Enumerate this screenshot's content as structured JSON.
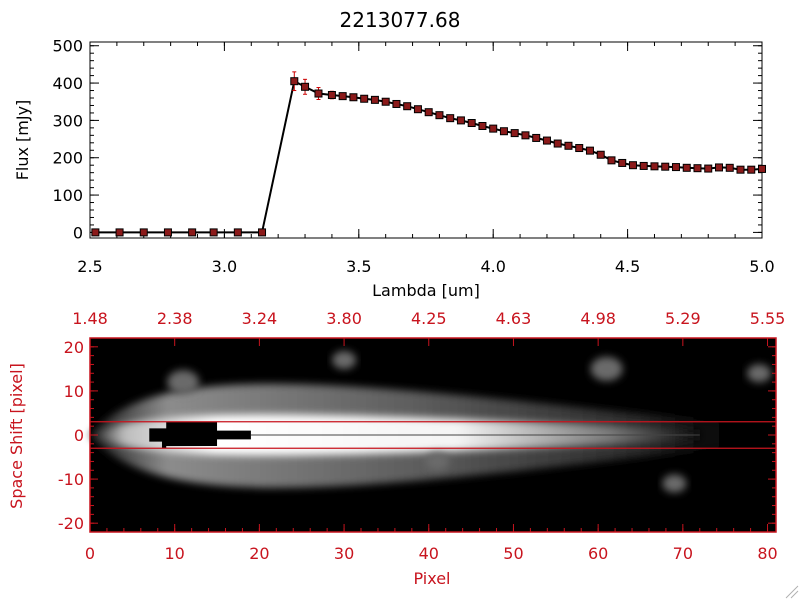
{
  "title": "2213077.68",
  "colors": {
    "data": "#000000",
    "marker_fill": "#8b1a1a",
    "errorbar": "#cc0000",
    "accent": "#c8141e"
  },
  "chart_data": [
    {
      "type": "line",
      "title": "2213077.68",
      "xlabel": "Lambda [um]",
      "ylabel": "Flux [mJy]",
      "xlim": [
        2.5,
        5.0
      ],
      "ylim": [
        -15,
        510
      ],
      "xticks": [
        "2.5",
        "3.0",
        "3.5",
        "4.0",
        "4.5",
        "5.0"
      ],
      "yticks": [
        "0",
        "100",
        "200",
        "300",
        "400",
        "500"
      ],
      "grid": false,
      "series": [
        {
          "x": [
            2.52,
            2.61,
            2.7,
            2.79,
            2.88,
            2.96,
            3.05,
            3.14,
            3.26,
            3.3,
            3.35,
            3.4,
            3.44,
            3.48,
            3.52,
            3.56,
            3.6,
            3.64,
            3.68,
            3.72,
            3.76,
            3.8,
            3.84,
            3.88,
            3.92,
            3.96,
            4.0,
            4.04,
            4.08,
            4.12,
            4.16,
            4.2,
            4.24,
            4.28,
            4.32,
            4.36,
            4.4,
            4.44,
            4.48,
            4.52,
            4.56,
            4.6,
            4.64,
            4.68,
            4.72,
            4.76,
            4.8,
            4.84,
            4.88,
            4.92,
            4.96,
            5.0
          ],
          "y": [
            0,
            0,
            0,
            0,
            0,
            0,
            0,
            0,
            405,
            390,
            372,
            368,
            365,
            362,
            358,
            355,
            350,
            344,
            338,
            330,
            322,
            314,
            306,
            300,
            293,
            285,
            278,
            271,
            266,
            260,
            253,
            246,
            238,
            232,
            226,
            219,
            208,
            193,
            186,
            180,
            178,
            177,
            176,
            175,
            173,
            172,
            171,
            174,
            173,
            168,
            168,
            170
          ],
          "yerr": [
            0,
            0,
            0,
            0,
            0,
            0,
            0,
            0,
            25,
            20,
            16,
            10,
            8,
            7,
            7,
            6,
            6,
            6,
            6,
            6,
            5,
            5,
            5,
            5,
            5,
            5,
            5,
            5,
            5,
            5,
            5,
            5,
            5,
            5,
            5,
            5,
            5,
            5,
            5,
            5,
            5,
            5,
            5,
            5,
            5,
            5,
            5,
            5,
            5,
            5,
            5,
            5
          ]
        }
      ]
    },
    {
      "type": "heatmap",
      "xlabel": "Pixel",
      "ylabel": "Space Shift [pixel]",
      "xlim": [
        0,
        81
      ],
      "ylim": [
        -22,
        22
      ],
      "xticks": [
        "0",
        "10",
        "20",
        "30",
        "40",
        "50",
        "60",
        "70",
        "80"
      ],
      "yticks": [
        "-20",
        "-10",
        "0",
        "10",
        "20"
      ],
      "top_axis_ticks": [
        "1.48",
        "2.38",
        "3.24",
        "3.80",
        "4.25",
        "4.63",
        "4.98",
        "5.29",
        "5.55"
      ],
      "extraction_window": [
        -3,
        3
      ],
      "saturated_region": {
        "x": [
          7,
          19
        ],
        "y": [
          -2,
          2
        ]
      }
    }
  ]
}
